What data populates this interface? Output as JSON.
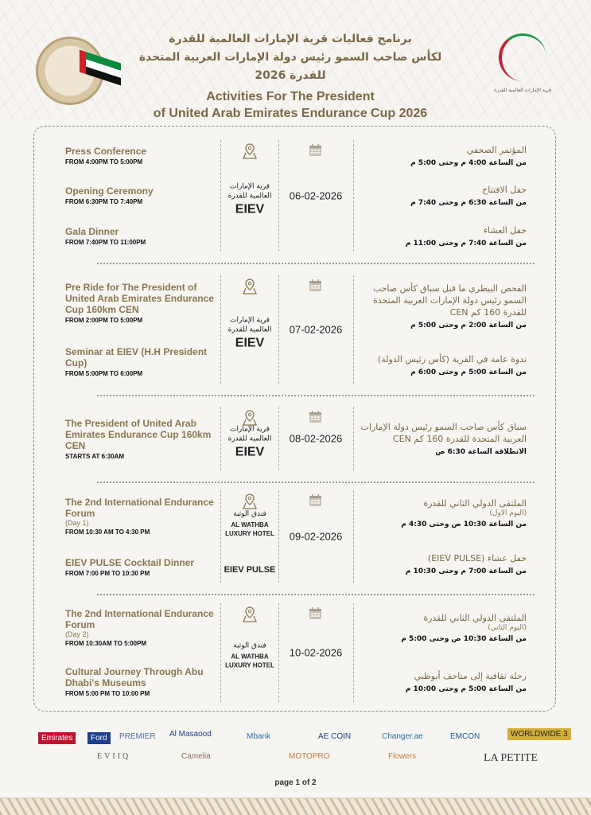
{
  "header": {
    "title_ar_1": "برنامج فعاليات قرية الإمارات العالمية للقدرة",
    "title_ar_2": "لكأس صاحب السمو رئيس دولة الإمارات العربية المتحدة للقدرة 2026",
    "title_en_1": "Activities For The President",
    "title_en_2": "of United Arab Emirates Endurance Cup 2026",
    "logo_right_caption": "قرية الإمارات العالمية للقدرة"
  },
  "colors": {
    "gold": "#8a7650",
    "text": "#111111",
    "border": "#888888"
  },
  "rows": [
    {
      "date": "06-02-2026",
      "venue": {
        "ar": "قرية الإمارات العالمية للقدرة",
        "en": "EIEV"
      },
      "events_en": [
        {
          "title": "Press Conference",
          "time": "FROM 4:00PM TO 5:00PM"
        },
        {
          "title": "Opening Ceremony",
          "time": "FROM 6:30PM TO 7:40PM"
        },
        {
          "title": "Gala Dinner",
          "time": "FROM 7:40PM TO 11:00PM"
        }
      ],
      "events_ar": [
        {
          "title": "المؤتمر الصحفي",
          "time": "من الساعة 4:00 م وحتى 5:00 م"
        },
        {
          "title": "حفل الافتتاح",
          "time": "من الساعة 6:30 م وحتى 7:40 م"
        },
        {
          "title": "حفل العشاء",
          "time": "من الساعة 7:40 م وحتى 11:00 م"
        }
      ]
    },
    {
      "date": "07-02-2026",
      "venue": {
        "ar": "قرية الإمارات العالمية للقدرة",
        "en": "EIEV"
      },
      "events_en": [
        {
          "title": "Pre Ride for The President of United Arab Emirates Endurance Cup 160km CEN",
          "time": "FROM 2:00PM TO 5:00PM"
        },
        {
          "title": "Seminar at EIEV (H.H President Cup)",
          "time": "FROM 5:00PM TO 6:00PM"
        }
      ],
      "events_ar": [
        {
          "title": "الفحص البيطري ما قبل سباق كأس صاحب السمو رئيس دولة الإمارات العربية المتحدة للقدرة 160 كم CEN",
          "time": "من الساعة 2:00 م وحتى 5:00 م"
        },
        {
          "title": "ندوة عامة في القرية (كأس رئيس الدولة)",
          "time": "من الساعة 5:00 م وحتى 6:00 م"
        }
      ]
    },
    {
      "date": "08-02-2026",
      "venue": {
        "ar": "قرية الإمارات العالمية للقدرة",
        "en": "EIEV"
      },
      "events_en": [
        {
          "title": "The President of United Arab Emirates Endurance Cup 160km CEN",
          "time": "STARTS AT 6:30AM"
        }
      ],
      "events_ar": [
        {
          "title": "سباق كأس صاحب السمو رئيس دولة الإمارات العربية المتحدة للقدرة 160 كم CEN",
          "time": "الانطلاقة الساعة 6:30 ص"
        }
      ]
    },
    {
      "date": "09-02-2026",
      "venue": {
        "ar": "فندق الوثبة",
        "en": "AL WATHBA LUXURY HOTEL",
        "extra": "EIEV PULSE"
      },
      "events_en": [
        {
          "title": "The 2nd International Endurance Forum",
          "sub": "(Day 1)",
          "time": "FROM 10:30 AM TO 4:30 PM"
        },
        {
          "title": "EIEV PULSE Cocktail Dinner",
          "time": "FROM 7:00 PM TO 10:30 PM"
        }
      ],
      "events_ar": [
        {
          "title": "الملتقى الدولي الثاني للقدرة",
          "sub": "(اليوم الاول)",
          "time": "من الساعة 10:30 ص وحتى 4:30 م"
        },
        {
          "title": "حفل عشاء (EIEV PULSE)",
          "time": "من الساعة 7:00 م وحتى 10:30 م"
        }
      ]
    },
    {
      "date": "10-02-2026",
      "venue": {
        "ar": "فندق الوثبة",
        "en": "AL WATHBA LUXURY HOTEL"
      },
      "events_en": [
        {
          "title": "The 2nd International Endurance Forum",
          "sub": "(Day 2)",
          "time": "FROM 10:30AM TO 5:00PM"
        },
        {
          "title": "Cultural Journey Through Abu Dhabi's Museums",
          "time": "FROM 5:00 PM TO 10:00 PM"
        }
      ],
      "events_ar": [
        {
          "title": "الملتقى الدولي الثاني للقدرة",
          "sub": "(اليوم الثاني)",
          "time": "من الساعة 10:30 ص وحتى 5:00 م"
        },
        {
          "title": "رحلة ثقافية إلى متاحف أبوظبي",
          "time": "من الساعة 5:00 م وحتى 10:00 م"
        }
      ]
    }
  ],
  "sponsors": [
    "Emirates",
    "Ford",
    "PREMIER",
    "Al Masaood",
    "Mbank",
    "AE COIN",
    "Changer.ae",
    "EMCON",
    "WORLDWIDE 3",
    "EVIIQ",
    "Camelia",
    "MOTOPRO",
    "Flowers",
    "LA PETITE"
  ],
  "footer": {
    "page": "page 1 of 2"
  }
}
